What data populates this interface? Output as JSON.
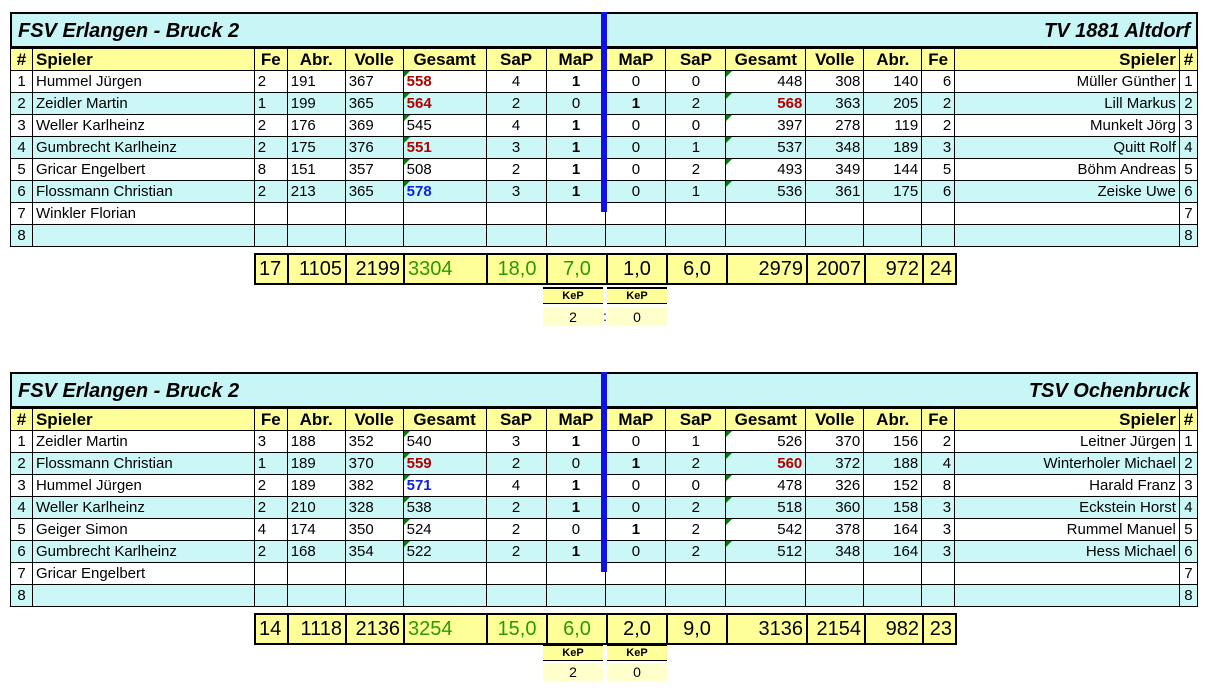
{
  "matches": [
    {
      "home_team": "FSV Erlangen - Bruck 2",
      "away_team": "TV 1881 Altdorf",
      "headers": [
        "#",
        "Spieler",
        "Fe",
        "Abr.",
        "Volle",
        "Gesamt",
        "SaP",
        "MaP",
        "MaP",
        "SaP",
        "Gesamt",
        "Volle",
        "Abr.",
        "Fe",
        "Spieler",
        "#"
      ],
      "rows": [
        {
          "n": "1",
          "hp": "Hummel Jürgen",
          "hfe": "2",
          "habr": "191",
          "hvol": "367",
          "hges": "558",
          "hsap": "4",
          "hmap": "1",
          "amap": "0",
          "asap": "0",
          "ages": "448",
          "avol": "308",
          "aabr": "140",
          "afe": "6",
          "ap": "Müller Günther",
          "an": "1"
        },
        {
          "n": "2",
          "hp": "Zeidler Martin",
          "hfe": "1",
          "habr": "199",
          "hvol": "365",
          "hges": "564",
          "hsap": "2",
          "hmap": "0",
          "amap": "1",
          "asap": "2",
          "ages": "568",
          "avol": "363",
          "aabr": "205",
          "afe": "2",
          "ap": "Lill Markus",
          "an": "2"
        },
        {
          "n": "3",
          "hp": "Weller Karlheinz",
          "hfe": "2",
          "habr": "176",
          "hvol": "369",
          "hges": "545",
          "hsap": "4",
          "hmap": "1",
          "amap": "0",
          "asap": "0",
          "ages": "397",
          "avol": "278",
          "aabr": "119",
          "afe": "2",
          "ap": "Munkelt Jörg",
          "an": "3"
        },
        {
          "n": "4",
          "hp": "Gumbrecht Karlheinz",
          "hfe": "2",
          "habr": "175",
          "hvol": "376",
          "hges": "551",
          "hsap": "3",
          "hmap": "1",
          "amap": "0",
          "asap": "1",
          "ages": "537",
          "avol": "348",
          "aabr": "189",
          "afe": "3",
          "ap": "Quitt Rolf",
          "an": "4"
        },
        {
          "n": "5",
          "hp": "Gricar Engelbert",
          "hfe": "8",
          "habr": "151",
          "hvol": "357",
          "hges": "508",
          "hsap": "2",
          "hmap": "1",
          "amap": "0",
          "asap": "2",
          "ages": "493",
          "avol": "349",
          "aabr": "144",
          "afe": "5",
          "ap": "Böhm Andreas",
          "an": "5"
        },
        {
          "n": "6",
          "hp": "Flossmann Christian",
          "hfe": "2",
          "habr": "213",
          "hvol": "365",
          "hges": "578",
          "hsap": "3",
          "hmap": "1",
          "amap": "0",
          "asap": "1",
          "ages": "536",
          "avol": "361",
          "aabr": "175",
          "afe": "6",
          "ap": "Zeiske Uwe",
          "an": "6"
        },
        {
          "n": "7",
          "hp": "Winkler Florian",
          "hfe": "",
          "habr": "",
          "hvol": "",
          "hges": "",
          "hsap": "",
          "hmap": "",
          "amap": "",
          "asap": "",
          "ages": "",
          "avol": "",
          "aabr": "",
          "afe": "",
          "ap": "",
          "an": "7"
        },
        {
          "n": "8",
          "hp": "",
          "hfe": "",
          "habr": "",
          "hvol": "",
          "hges": "",
          "hsap": "",
          "hmap": "",
          "amap": "",
          "asap": "",
          "ages": "",
          "avol": "",
          "aabr": "",
          "afe": "",
          "ap": "",
          "an": "8"
        }
      ],
      "totals": {
        "hfe": "17",
        "habr": "1105",
        "hvol": "2199",
        "hges": "3304",
        "hsap": "18,0",
        "hmap": "7,0",
        "amap": "1,0",
        "asap": "6,0",
        "ages": "2979",
        "avol": "2007",
        "aabr": "972",
        "afe": "24"
      },
      "kep": {
        "label_home": "KeP",
        "label_away": "KeP",
        "home": "2",
        "sep": ":",
        "away": "0"
      }
    },
    {
      "home_team": "FSV Erlangen - Bruck 2",
      "away_team": "TSV Ochenbruck",
      "headers": [
        "#",
        "Spieler",
        "Fe",
        "Abr.",
        "Volle",
        "Gesamt",
        "SaP",
        "MaP",
        "MaP",
        "SaP",
        "Gesamt",
        "Volle",
        "Abr.",
        "Fe",
        "Spieler",
        "#"
      ],
      "rows": [
        {
          "n": "1",
          "hp": "Zeidler Martin",
          "hfe": "3",
          "habr": "188",
          "hvol": "352",
          "hges": "540",
          "hsap": "3",
          "hmap": "1",
          "amap": "0",
          "asap": "1",
          "ages": "526",
          "avol": "370",
          "aabr": "156",
          "afe": "2",
          "ap": "Leitner Jürgen",
          "an": "1"
        },
        {
          "n": "2",
          "hp": "Flossmann Christian",
          "hfe": "1",
          "habr": "189",
          "hvol": "370",
          "hges": "559",
          "hsap": "2",
          "hmap": "0",
          "amap": "1",
          "asap": "2",
          "ages": "560",
          "avol": "372",
          "aabr": "188",
          "afe": "4",
          "ap": "Winterholer Michael",
          "an": "2"
        },
        {
          "n": "3",
          "hp": "Hummel Jürgen",
          "hfe": "2",
          "habr": "189",
          "hvol": "382",
          "hges": "571",
          "hsap": "4",
          "hmap": "1",
          "amap": "0",
          "asap": "0",
          "ages": "478",
          "avol": "326",
          "aabr": "152",
          "afe": "8",
          "ap": "Harald Franz",
          "an": "3"
        },
        {
          "n": "4",
          "hp": "Weller Karlheinz",
          "hfe": "2",
          "habr": "210",
          "hvol": "328",
          "hges": "538",
          "hsap": "2",
          "hmap": "1",
          "amap": "0",
          "asap": "2",
          "ages": "518",
          "avol": "360",
          "aabr": "158",
          "afe": "3",
          "ap": "Eckstein Horst",
          "an": "4"
        },
        {
          "n": "5",
          "hp": "Geiger Simon",
          "hfe": "4",
          "habr": "174",
          "hvol": "350",
          "hges": "524",
          "hsap": "2",
          "hmap": "0",
          "amap": "1",
          "asap": "2",
          "ages": "542",
          "avol": "378",
          "aabr": "164",
          "afe": "3",
          "ap": "Rummel Manuel",
          "an": "5"
        },
        {
          "n": "6",
          "hp": "Gumbrecht Karlheinz",
          "hfe": "2",
          "habr": "168",
          "hvol": "354",
          "hges": "522",
          "hsap": "2",
          "hmap": "1",
          "amap": "0",
          "asap": "2",
          "ages": "512",
          "avol": "348",
          "aabr": "164",
          "afe": "3",
          "ap": "Hess Michael",
          "an": "6"
        },
        {
          "n": "7",
          "hp": "Gricar Engelbert",
          "hfe": "",
          "habr": "",
          "hvol": "",
          "hges": "",
          "hsap": "",
          "hmap": "",
          "amap": "",
          "asap": "",
          "ages": "",
          "avol": "",
          "aabr": "",
          "afe": "",
          "ap": "",
          "an": "7"
        },
        {
          "n": "8",
          "hp": "",
          "hfe": "",
          "habr": "",
          "hvol": "",
          "hges": "",
          "hsap": "",
          "hmap": "",
          "amap": "",
          "asap": "",
          "ages": "",
          "avol": "",
          "aabr": "",
          "afe": "",
          "ap": "",
          "an": "8"
        }
      ],
      "totals": {
        "hfe": "14",
        "habr": "1118",
        "hvol": "2136",
        "hges": "3254",
        "hsap": "15,0",
        "hmap": "6,0",
        "amap": "2,0",
        "asap": "9,0",
        "ages": "3136",
        "avol": "2154",
        "aabr": "982",
        "afe": "23"
      },
      "kep": {
        "label_home": "KeP",
        "label_away": "KeP",
        "home": "2",
        "sep": "",
        "away": "0"
      }
    }
  ],
  "colors": {
    "header_yellow": "#ffff99",
    "row_cyan": "#ccf7f7",
    "title_cyan": "#c8f5f5",
    "divider_blue": "#1010e8",
    "best_red": "#b00000",
    "best_blue": "#1020e0",
    "total_green": "#2a9a00"
  },
  "highlights": {
    "match0": {
      "home_red": [
        0,
        1,
        3
      ],
      "home_blue": [
        5
      ],
      "away_red": [
        1
      ]
    },
    "match1": {
      "home_red": [
        1
      ],
      "home_blue": [
        2
      ],
      "away_red": [
        1
      ]
    }
  }
}
